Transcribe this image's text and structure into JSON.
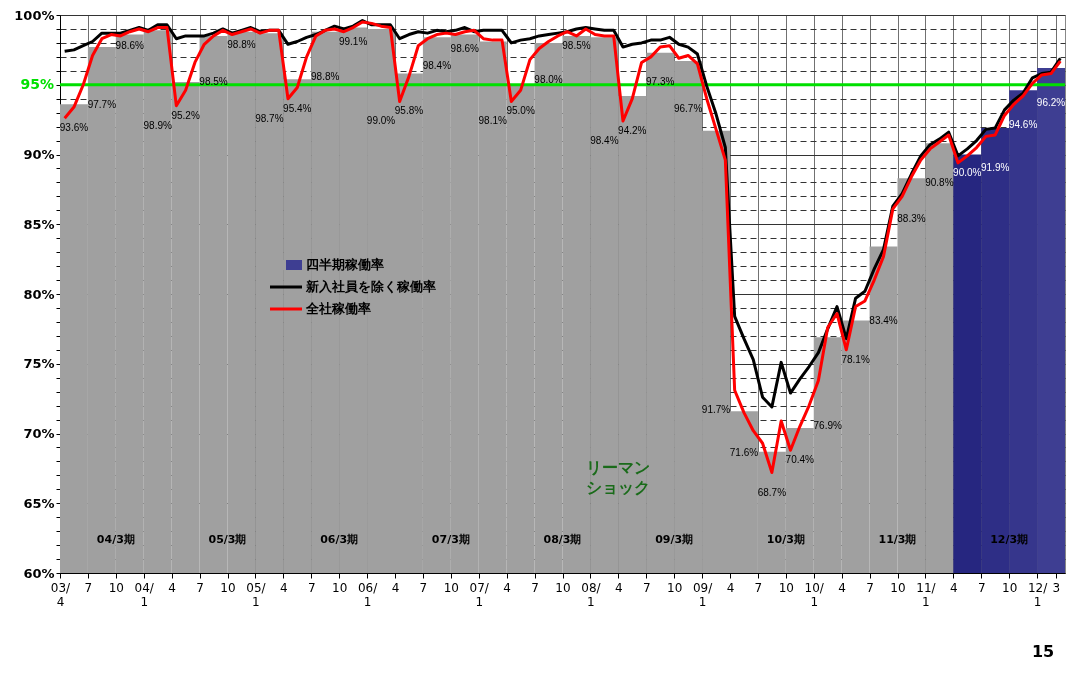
{
  "chart_data": {
    "type": "bar",
    "xlim": [
      "2003-04",
      "2012-04"
    ],
    "ylim": [
      60,
      100
    ],
    "grid": true,
    "legend": "left",
    "xticks": [
      {
        "value": "2003-04",
        "label": "03/\n4"
      },
      {
        "value": "2003-07",
        "label": "7"
      },
      {
        "value": "2003-10",
        "label": "10"
      },
      {
        "value": "2004-01",
        "label": "04/\n1"
      },
      {
        "value": "2004-04",
        "label": "4"
      },
      {
        "value": "2004-07",
        "label": "7"
      },
      {
        "value": "2004-10",
        "label": "10"
      },
      {
        "value": "2005-01",
        "label": "05/\n1"
      },
      {
        "value": "2005-04",
        "label": "4"
      },
      {
        "value": "2005-07",
        "label": "7"
      },
      {
        "value": "2005-10",
        "label": "10"
      },
      {
        "value": "2006-01",
        "label": "06/\n1"
      },
      {
        "value": "2006-04",
        "label": "4"
      },
      {
        "value": "2006-07",
        "label": "7"
      },
      {
        "value": "2006-10",
        "label": "10"
      },
      {
        "value": "2007-01",
        "label": "07/\n1"
      },
      {
        "value": "2007-04",
        "label": "4"
      },
      {
        "value": "2007-07",
        "label": "7"
      },
      {
        "value": "2007-10",
        "label": "10"
      },
      {
        "value": "2008-01",
        "label": "08/\n1"
      },
      {
        "value": "2008-04",
        "label": "4"
      },
      {
        "value": "2008-07",
        "label": "7"
      },
      {
        "value": "2008-10",
        "label": "10"
      },
      {
        "value": "2009-01",
        "label": "09/\n1"
      },
      {
        "value": "2009-04",
        "label": "4"
      },
      {
        "value": "2009-07",
        "label": "7"
      },
      {
        "value": "2009-10",
        "label": "10"
      },
      {
        "value": "2010-01",
        "label": "10/\n1"
      },
      {
        "value": "2010-04",
        "label": "4"
      },
      {
        "value": "2010-07",
        "label": "7"
      },
      {
        "value": "2010-10",
        "label": "10"
      },
      {
        "value": "2011-01",
        "label": "11/\n1"
      },
      {
        "value": "2011-04",
        "label": "4"
      },
      {
        "value": "2011-07",
        "label": "7"
      },
      {
        "value": "2011-10",
        "label": "10"
      },
      {
        "value": "2012-01",
        "label": "12/\n1"
      },
      {
        "value": "2012-03",
        "label": "3"
      }
    ],
    "yticks": [
      {
        "value": 60,
        "label": "60%"
      },
      {
        "value": 61,
        "label": null
      },
      {
        "value": 62,
        "label": null
      },
      {
        "value": 63,
        "label": null
      },
      {
        "value": 64,
        "label": null
      },
      {
        "value": 65,
        "label": "65%"
      },
      {
        "value": 66,
        "label": null
      },
      {
        "value": 67,
        "label": null
      },
      {
        "value": 68,
        "label": null
      },
      {
        "value": 69,
        "label": null
      },
      {
        "value": 70,
        "label": "70%"
      },
      {
        "value": 71,
        "label": null
      },
      {
        "value": 72,
        "label": null
      },
      {
        "value": 73,
        "label": null
      },
      {
        "value": 74,
        "label": null
      },
      {
        "value": 75,
        "label": "75%"
      },
      {
        "value": 76,
        "label": null
      },
      {
        "value": 77,
        "label": null
      },
      {
        "value": 78,
        "label": null
      },
      {
        "value": 79,
        "label": null
      },
      {
        "value": 80,
        "label": "80%"
      },
      {
        "value": 81,
        "label": null
      },
      {
        "value": 82,
        "label": null
      },
      {
        "value": 83,
        "label": null
      },
      {
        "value": 84,
        "label": null
      },
      {
        "value": 85,
        "label": "85%"
      },
      {
        "value": 86,
        "label": null
      },
      {
        "value": 87,
        "label": null
      },
      {
        "value": 88,
        "label": null
      },
      {
        "value": 89,
        "label": null
      },
      {
        "value": 90,
        "label": "90%"
      },
      {
        "value": 91,
        "label": null
      },
      {
        "value": 92,
        "label": null
      },
      {
        "value": 93,
        "label": null
      },
      {
        "value": 94,
        "label": null
      },
      {
        "value": 95,
        "label": null
      },
      {
        "value": 96,
        "label": null
      },
      {
        "value": 97,
        "label": null
      },
      {
        "value": 98,
        "label": null
      },
      {
        "value": 99,
        "label": null
      },
      {
        "value": 100,
        "label": "100%"
      }
    ],
    "x": [
      "2003-04-16",
      "2003-05-16",
      "2003-06-16",
      "2003-07-16",
      "2003-08-16",
      "2003-09-16",
      "2003-10-16",
      "2003-11-16",
      "2003-12-16",
      "2004-01-16",
      "2004-02-16",
      "2004-03-16",
      "2004-04-16",
      "2004-05-16",
      "2004-06-16",
      "2004-07-16",
      "2004-08-16",
      "2004-09-16",
      "2004-10-16",
      "2004-11-16",
      "2004-12-16",
      "2005-01-16",
      "2005-02-16",
      "2005-03-16",
      "2005-04-16",
      "2005-05-16",
      "2005-06-16",
      "2005-07-16",
      "2005-08-16",
      "2005-09-16",
      "2005-10-16",
      "2005-11-16",
      "2005-12-16",
      "2006-01-16",
      "2006-02-16",
      "2006-03-16",
      "2006-04-16",
      "2006-05-16",
      "2006-06-16",
      "2006-07-16",
      "2006-08-16",
      "2006-09-16",
      "2006-10-16",
      "2006-11-16",
      "2006-12-16",
      "2007-01-16",
      "2007-02-16",
      "2007-03-16",
      "2007-04-16",
      "2007-05-16",
      "2007-06-16",
      "2007-07-16",
      "2007-08-16",
      "2007-09-16",
      "2007-10-16",
      "2007-11-16",
      "2007-12-16",
      "2008-01-16",
      "2008-02-16",
      "2008-03-16",
      "2008-04-16",
      "2008-05-16",
      "2008-06-16",
      "2008-07-16",
      "2008-08-16",
      "2008-09-16",
      "2008-10-16",
      "2008-11-16",
      "2008-12-16",
      "2009-01-16",
      "2009-02-16",
      "2009-03-16",
      "2009-04-16",
      "2009-05-16",
      "2009-06-16",
      "2009-07-16",
      "2009-08-16",
      "2009-09-16",
      "2009-10-16",
      "2009-11-16",
      "2009-12-16",
      "2010-01-16",
      "2010-02-16",
      "2010-03-16",
      "2010-04-16",
      "2010-05-16",
      "2010-06-16",
      "2010-07-16",
      "2010-08-16",
      "2010-09-16",
      "2010-10-16",
      "2010-11-16",
      "2010-12-16",
      "2011-01-16",
      "2011-02-16",
      "2011-03-16",
      "2011-04-16",
      "2011-05-16",
      "2011-06-16",
      "2011-07-16",
      "2011-08-16",
      "2011-09-16",
      "2011-10-16",
      "2011-11-16",
      "2011-12-16",
      "2012-01-16",
      "2012-02-16",
      "2012-03-16"
    ],
    "series": [
      {
        "name": "四半期稼働率",
        "x": [
          "2003-05-16",
          "2003-08-16",
          "2003-11-16",
          "2004-02-16",
          "2004-05-16",
          "2004-08-16",
          "2004-11-16",
          "2005-02-16",
          "2005-05-16",
          "2005-08-16",
          "2005-11-16",
          "2006-02-16",
          "2006-05-16",
          "2006-08-16",
          "2006-11-16",
          "2007-02-16",
          "2007-05-16",
          "2007-08-16",
          "2007-11-16",
          "2008-02-16",
          "2008-05-16",
          "2008-08-16",
          "2008-11-16",
          "2009-02-16",
          "2009-05-16",
          "2009-08-16",
          "2009-11-16",
          "2010-02-16",
          "2010-05-16",
          "2010-08-16",
          "2010-11-16",
          "2011-02-16",
          "2011-05-16",
          "2011-08-16",
          "2011-11-16",
          "2012-02-16"
        ],
        "values": [
          93.6,
          97.7,
          98.6,
          98.9,
          95.2,
          98.5,
          98.8,
          98.7,
          95.4,
          98.8,
          99.1,
          99.0,
          95.8,
          98.4,
          98.6,
          98.1,
          95.0,
          98.0,
          98.5,
          98.4,
          94.2,
          97.3,
          96.7,
          91.7,
          71.6,
          68.7,
          70.4,
          76.9,
          78.1,
          83.4,
          88.3,
          90.8,
          90.0,
          91.9,
          94.6,
          96.2
        ],
        "colors": [
          "#a0a0a0",
          "#a0a0a0",
          "#a0a0a0",
          "#a0a0a0",
          "#a0a0a0",
          "#a0a0a0",
          "#a0a0a0",
          "#a0a0a0",
          "#a0a0a0",
          "#a0a0a0",
          "#a0a0a0",
          "#a0a0a0",
          "#a0a0a0",
          "#a0a0a0",
          "#a0a0a0",
          "#a0a0a0",
          "#a0a0a0",
          "#a0a0a0",
          "#a0a0a0",
          "#a0a0a0",
          "#a0a0a0",
          "#a0a0a0",
          "#a0a0a0",
          "#a0a0a0",
          "#a0a0a0",
          "#a0a0a0",
          "#a0a0a0",
          "#a0a0a0",
          "#a0a0a0",
          "#a0a0a0",
          "#a0a0a0",
          "#a0a0a0",
          "#262680",
          "#2e2e86",
          "#36368c",
          "#3e3e92"
        ],
        "value_labels": [
          "93.6%",
          "97.7%",
          "98.6%",
          "98.9%",
          "95.2%",
          "98.5%",
          "98.8%",
          "98.7%",
          "95.4%",
          "98.8%",
          "99.1%",
          "99.0%",
          "95.8%",
          "98.4%",
          "98.6%",
          "98.1%",
          "95.0%",
          "98.0%",
          "98.5%",
          "98.4%",
          "94.2%",
          "97.3%",
          "96.7%",
          "91.7%",
          "71.6%",
          "68.7%",
          "70.4%",
          "76.9%",
          "78.1%",
          "83.4%",
          "88.3%",
          "90.8%",
          "90.0%",
          "91.9%",
          "94.6%",
          "96.2%"
        ]
      },
      {
        "name": "新入社員を除く稼働率",
        "type": "line",
        "color": "#000000",
        "values": [
          97.4,
          97.5,
          97.8,
          98.1,
          98.7,
          98.7,
          98.7,
          98.9,
          99.1,
          98.9,
          99.3,
          99.3,
          98.3,
          98.5,
          98.5,
          98.5,
          98.7,
          99.0,
          98.7,
          98.9,
          99.1,
          98.8,
          98.9,
          98.9,
          97.9,
          98.1,
          98.4,
          98.6,
          98.9,
          99.2,
          99.0,
          99.2,
          99.6,
          99.3,
          99.3,
          99.3,
          98.3,
          98.6,
          98.8,
          98.7,
          98.9,
          98.8,
          98.9,
          99.1,
          98.8,
          98.9,
          98.9,
          98.9,
          98.0,
          98.2,
          98.3,
          98.5,
          98.6,
          98.7,
          98.8,
          99.0,
          99.1,
          99.0,
          98.9,
          98.9,
          97.7,
          97.9,
          98.0,
          98.2,
          98.2,
          98.4,
          97.9,
          97.7,
          97.2,
          94.9,
          92.9,
          90.5,
          78.4,
          76.8,
          75.3,
          72.6,
          71.9,
          75.1,
          72.9,
          73.9,
          74.8,
          75.8,
          77.5,
          79.1,
          76.8,
          79.7,
          80.2,
          81.8,
          83.2,
          86.3,
          87.2,
          88.6,
          89.9,
          90.7,
          91.1,
          91.6,
          89.9,
          90.4,
          91.0,
          91.8,
          91.9,
          93.2,
          93.9,
          94.4,
          95.5,
          95.8,
          95.9,
          96.9
        ]
      },
      {
        "name": "全社稼働率",
        "type": "line",
        "color": "#ff0000",
        "values": [
          92.6,
          93.4,
          95.0,
          97.1,
          98.3,
          98.6,
          98.5,
          98.8,
          99.0,
          98.8,
          99.1,
          99.1,
          93.5,
          94.6,
          96.6,
          97.9,
          98.5,
          98.9,
          98.6,
          98.8,
          99.0,
          98.7,
          98.9,
          98.9,
          94.0,
          94.8,
          97.0,
          98.5,
          98.9,
          99.0,
          98.8,
          99.1,
          99.5,
          99.4,
          99.2,
          99.1,
          93.8,
          95.6,
          97.8,
          98.3,
          98.6,
          98.7,
          98.6,
          98.8,
          98.9,
          98.3,
          98.2,
          98.2,
          93.8,
          94.6,
          96.8,
          97.6,
          98.1,
          98.5,
          98.8,
          98.5,
          99.0,
          98.6,
          98.5,
          98.5,
          92.4,
          94.0,
          96.6,
          97.0,
          97.7,
          97.8,
          96.9,
          97.1,
          96.5,
          94.0,
          91.8,
          89.6,
          73.1,
          71.5,
          70.2,
          69.3,
          67.2,
          70.9,
          68.8,
          70.5,
          72.0,
          73.8,
          77.6,
          78.6,
          76.0,
          79.1,
          79.5,
          81.0,
          82.7,
          86.1,
          87.0,
          88.4,
          89.6,
          90.4,
          90.9,
          91.4,
          89.4,
          89.9,
          90.5,
          91.3,
          91.4,
          92.8,
          93.6,
          94.2,
          95.1,
          95.7,
          95.8,
          96.7
        ]
      }
    ],
    "ref_lines": [
      {
        "axis": "y",
        "value": 95,
        "label": "95%",
        "color": "#00e000"
      }
    ],
    "annotations": [
      "04/3期",
      "05/3期",
      "06/3期",
      "07/3期",
      "08/3期",
      "09/3期",
      "10/3期",
      "11/3期",
      "12/3期",
      "リーマンショック",
      "15"
    ]
  }
}
